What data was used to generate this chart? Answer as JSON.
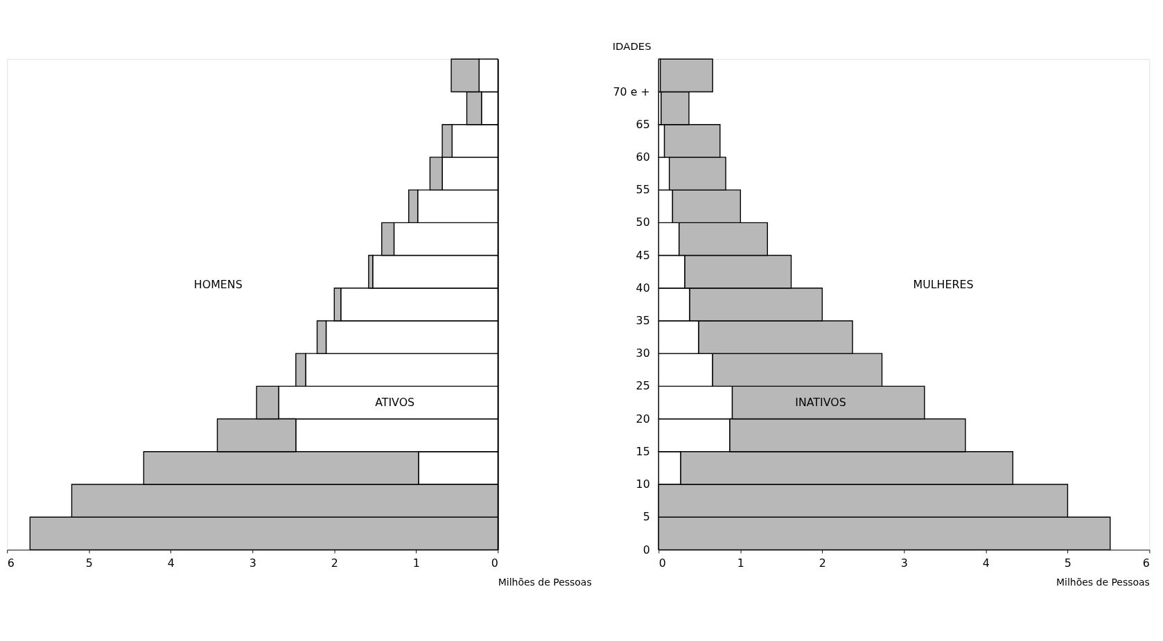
{
  "chart_data": [
    {
      "type": "bar",
      "orientation": "horizontal",
      "stacked": true,
      "annotations": [
        "HOMENS"
      ],
      "xlabel": "Milhões de Pessoas",
      "x": [
        2.5,
        7.5,
        12.5,
        17.5,
        22.5,
        27.5,
        32.5,
        37.5,
        42.5,
        47.5,
        52.5,
        57.5,
        62.5,
        67.5,
        72.5
      ],
      "xlim": [
        6,
        0
      ],
      "xticks": [
        0,
        1,
        2,
        3,
        4,
        5,
        6
      ],
      "ylim": [
        0,
        75
      ],
      "tick_labels": "x",
      "grid": false,
      "legend": false,
      "series": [
        {
          "name": "ATIVOS",
          "color": "#ffffff",
          "values": [
            0,
            0,
            0.97,
            2.47,
            2.68,
            2.35,
            2.1,
            1.92,
            1.53,
            1.27,
            0.98,
            0.68,
            0.56,
            0.2,
            0.23
          ]
        },
        {
          "color": "#b8b8b8",
          "values": [
            5.72,
            5.21,
            3.36,
            0.96,
            0.27,
            0.12,
            0.11,
            0.08,
            0.05,
            0.15,
            0.11,
            0.15,
            0.12,
            0.18,
            0.34
          ]
        }
      ]
    },
    {
      "type": "bar",
      "orientation": "horizontal",
      "stacked": true,
      "annotations": [
        "MULHERES"
      ],
      "xlabel": "Milhões de Pessoas",
      "ylabel": "IDADES",
      "x": [
        2.5,
        7.5,
        12.5,
        17.5,
        22.5,
        27.5,
        32.5,
        37.5,
        42.5,
        47.5,
        52.5,
        57.5,
        62.5,
        67.5,
        72.5
      ],
      "xlim": [
        0,
        6
      ],
      "xticks": [
        0,
        1,
        2,
        3,
        4,
        5,
        6
      ],
      "ylim": [
        0,
        75
      ],
      "yticks": [
        0,
        5,
        10,
        15,
        20,
        25,
        30,
        35,
        40,
        45,
        50,
        55,
        60,
        65,
        {
          "value": 70,
          "label": "70 e +"
        }
      ],
      "grid": false,
      "legend": false,
      "series": [
        {
          "color": "#ffffff",
          "values": [
            0,
            0,
            0.27,
            0.87,
            0.9,
            0.66,
            0.49,
            0.38,
            0.32,
            0.25,
            0.17,
            0.13,
            0.07,
            0.03,
            0.02
          ]
        },
        {
          "name": "INATIVOS",
          "color": "#b8b8b8",
          "values": [
            5.52,
            5.0,
            4.06,
            2.88,
            2.35,
            2.07,
            1.88,
            1.62,
            1.3,
            1.08,
            0.83,
            0.69,
            0.68,
            0.34,
            0.64
          ]
        }
      ]
    }
  ]
}
